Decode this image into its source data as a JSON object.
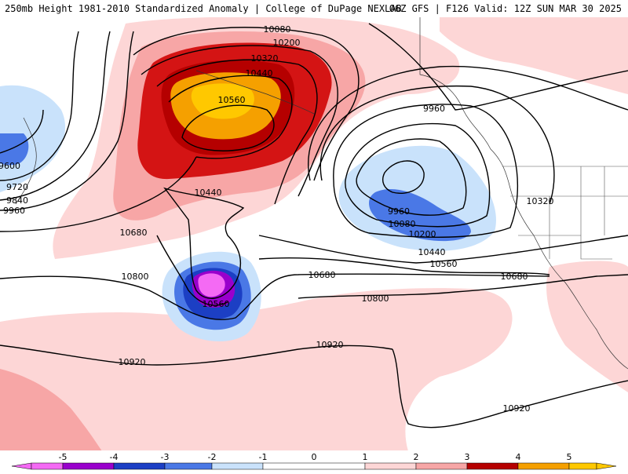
{
  "header": {
    "left_title": "250mb Height 1981-2010 Standardized Anomaly | College of DuPage NEXLAB",
    "right_title": "06Z GFS | F126 Valid: 12Z SUN MAR 30 2025"
  },
  "colors": {
    "anom_neg5": "#f46af4",
    "anom_neg4": "#9900cc",
    "anom_neg3": "#1c3fc4",
    "anom_neg2": "#4a78e6",
    "anom_neg1": "#c9e2fb",
    "anom_pos1": "#fdd6d6",
    "anom_pos2": "#f7a6a6",
    "anom_pos3": "#d41414",
    "anom_pos4": "#b50000",
    "anom_pos5": "#f5a000",
    "anom_pos6": "#ffc800"
  },
  "contour_labels": [
    "10080",
    "10200",
    "10320",
    "10440",
    "10560",
    "9960",
    "9600",
    "9720",
    "9840",
    "9960",
    "10440",
    "10680",
    "10800",
    "10560",
    "10680",
    "10680",
    "10800",
    "9960",
    "10080",
    "10200",
    "10320",
    "10440",
    "10560",
    "10920",
    "10920",
    "10920"
  ],
  "colorbar": {
    "ticks": [
      "-5",
      "-4",
      "-3",
      "-2",
      "-1",
      "0",
      "1",
      "2",
      "3",
      "4",
      "5"
    ]
  }
}
